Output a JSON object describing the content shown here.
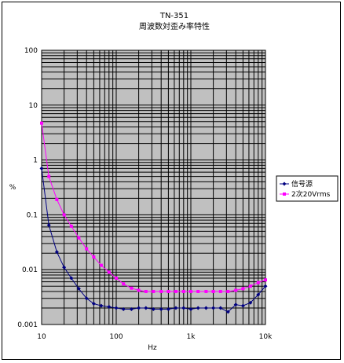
{
  "chart_data": {
    "type": "line",
    "title": "TN-351",
    "subtitle": "周波数対歪み率特性",
    "xlabel": "Hz",
    "ylabel": "%",
    "x_scale": "log",
    "y_scale": "log",
    "xlim": [
      10,
      10000
    ],
    "ylim": [
      0.001,
      100
    ],
    "x_ticks": [
      "10",
      "100",
      "1k",
      "10k"
    ],
    "y_ticks": [
      "0.001",
      "0.01",
      "0.1",
      "1",
      "10",
      "100"
    ],
    "grid": true,
    "legend_position": "right",
    "series": [
      {
        "name": "信号源",
        "color": "#000080",
        "marker": "diamond",
        "x": [
          10,
          12.5,
          16,
          20,
          25,
          31.5,
          40,
          50,
          63,
          80,
          100,
          125,
          160,
          200,
          250,
          315,
          400,
          500,
          630,
          800,
          1000,
          1250,
          1600,
          2000,
          2500,
          3150,
          4000,
          5000,
          6300,
          8000,
          10000
        ],
        "y": [
          0.7,
          0.065,
          0.021,
          0.011,
          0.007,
          0.0045,
          0.003,
          0.0024,
          0.0022,
          0.0021,
          0.002,
          0.0019,
          0.0019,
          0.002,
          0.002,
          0.0019,
          0.0019,
          0.0019,
          0.002,
          0.002,
          0.0019,
          0.002,
          0.002,
          0.002,
          0.002,
          0.0017,
          0.0023,
          0.0022,
          0.0025,
          0.0035,
          0.005
        ]
      },
      {
        "name": "2次20Vrms",
        "color": "#ff00ff",
        "marker": "square",
        "x": [
          10,
          12.5,
          16,
          20,
          25,
          31.5,
          40,
          50,
          63,
          80,
          100,
          125,
          160,
          200,
          250,
          315,
          400,
          500,
          630,
          800,
          1000,
          1250,
          1600,
          2000,
          2500,
          3150,
          4000,
          5000,
          6300,
          8000,
          10000
        ],
        "y": [
          4.7,
          0.5,
          0.19,
          0.1,
          0.062,
          0.038,
          0.024,
          0.017,
          0.012,
          0.009,
          0.007,
          0.0055,
          0.0046,
          0.0042,
          0.004,
          0.004,
          0.004,
          0.004,
          0.004,
          0.004,
          0.004,
          0.004,
          0.004,
          0.004,
          0.004,
          0.004,
          0.0042,
          0.0045,
          0.005,
          0.0058,
          0.0065
        ]
      }
    ]
  }
}
